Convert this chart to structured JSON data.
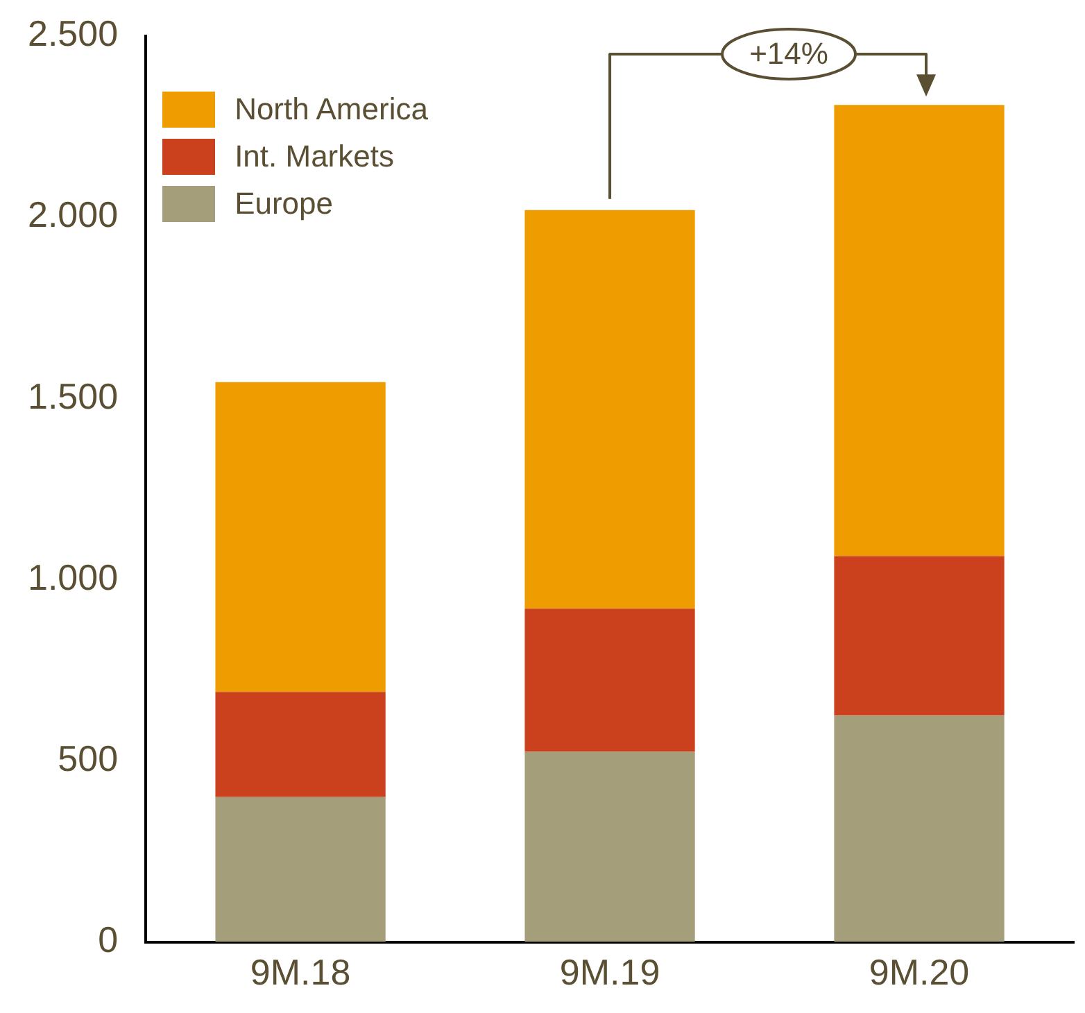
{
  "chart_data": {
    "type": "bar",
    "stacked": true,
    "categories": [
      "9M.18",
      "9M.19",
      "9M.20"
    ],
    "series": [
      {
        "name": "Europe",
        "color": "#a59e7a",
        "values": [
          400,
          525,
          625
        ]
      },
      {
        "name": "Int. Markets",
        "color": "#cb411e",
        "values": [
          290,
          395,
          440
        ]
      },
      {
        "name": "North America",
        "color": "#ee9c00",
        "values": [
          855,
          1100,
          1245
        ]
      }
    ],
    "ylim": [
      0,
      2500
    ],
    "yticks": [
      {
        "value": 0,
        "label": "0"
      },
      {
        "value": 500,
        "label": "500"
      },
      {
        "value": 1000,
        "label": "1.000"
      },
      {
        "value": 1500,
        "label": "1.500"
      },
      {
        "value": 2000,
        "label": "2.000"
      },
      {
        "value": 2500,
        "label": "2.500"
      }
    ],
    "grid": false,
    "legend": "top left",
    "annotations": [
      "+14%"
    ]
  }
}
